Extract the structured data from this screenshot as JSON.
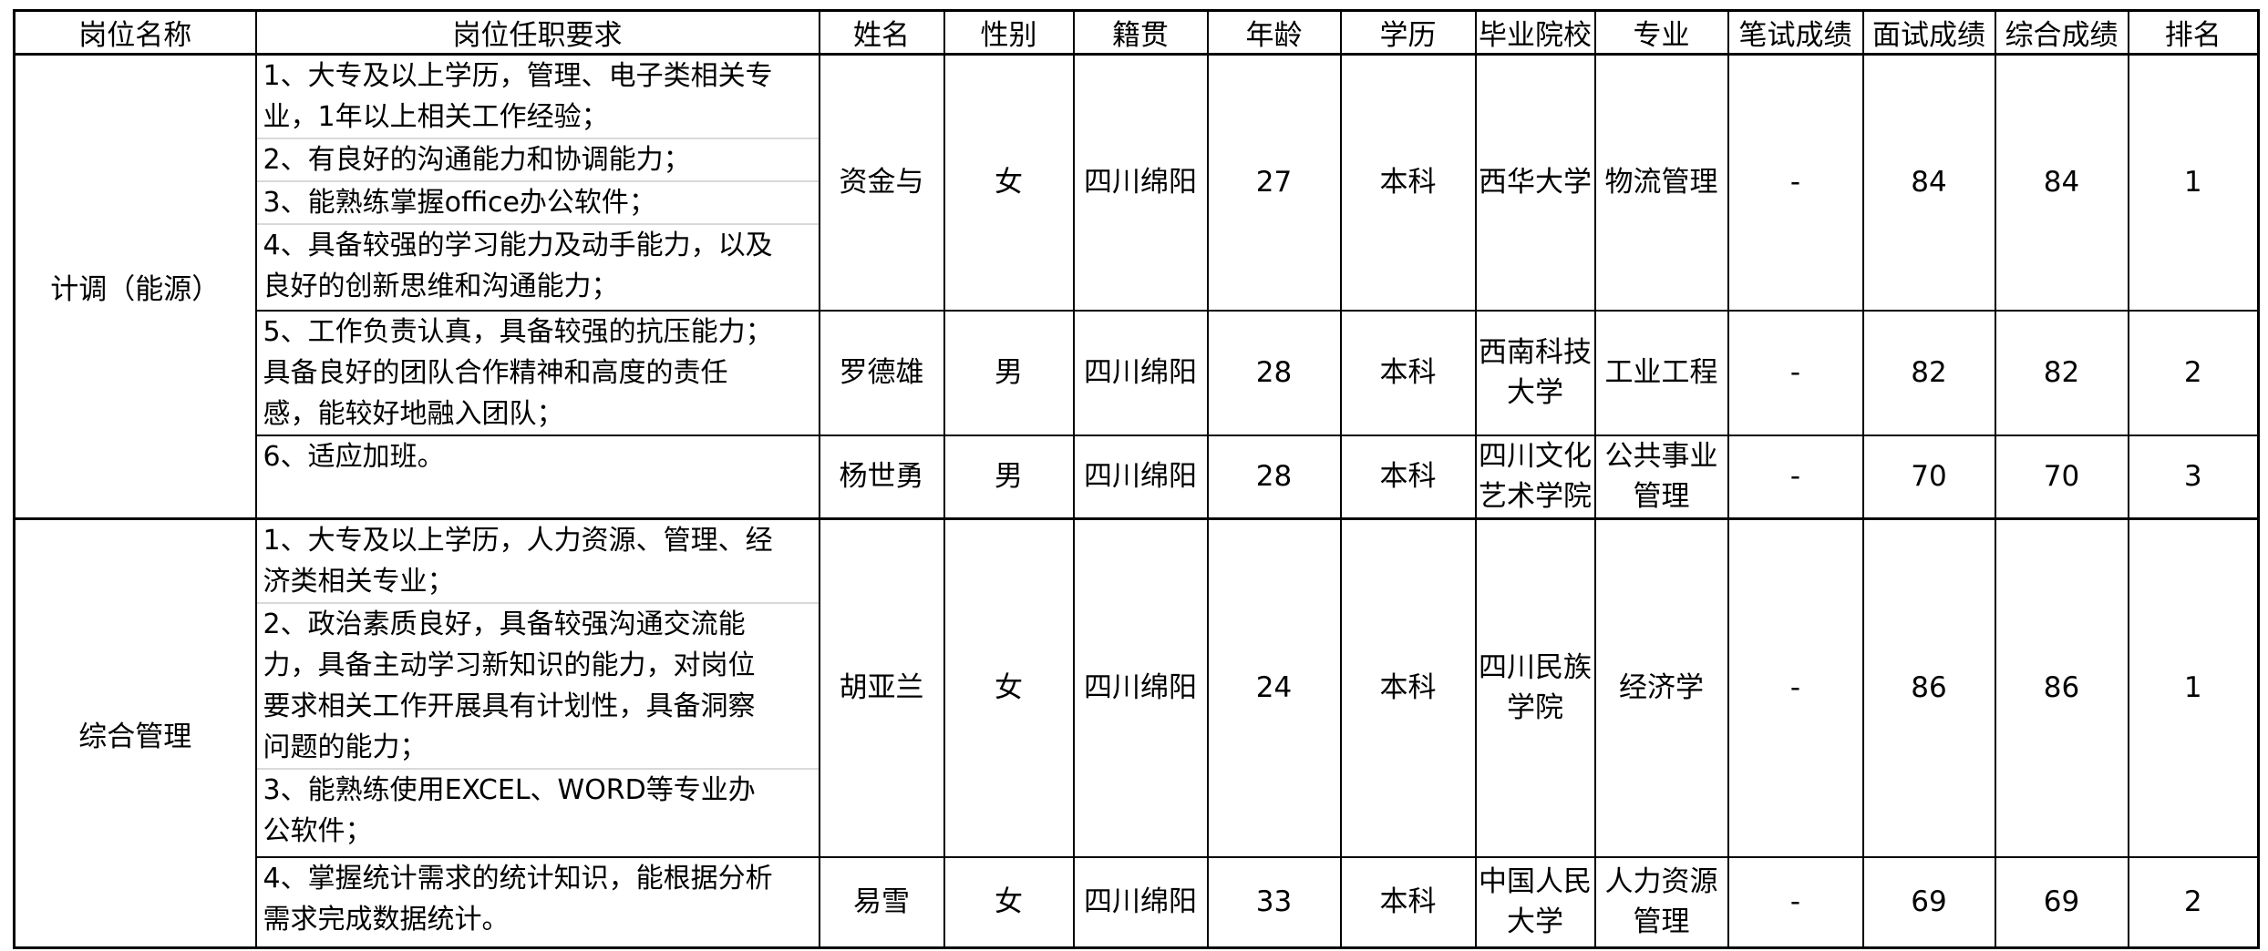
{
  "table": {
    "headers": [
      "岗位名称",
      "岗位任职要求",
      "姓名",
      "性别",
      "籍贯",
      "年龄",
      "学历",
      "毕业院校",
      "专业",
      "笔试成绩",
      "面试成绩",
      "综合成绩",
      "排名"
    ],
    "divider_color": "#d9d9d9",
    "grid_color": "#000000",
    "groups": [
      {
        "position": "计调（能源）",
        "rows": [
          {
            "requirements": [
              "1、大专及以上学历，管理、电子类相关专\n业，1年以上相关工作经验；",
              "2、有良好的沟通能力和协调能力；",
              "3、能熟练掌握office办公软件；",
              "4、具备较强的学习能力及动手能力，以及\n良好的创新思维和沟通能力；"
            ],
            "cells": [
              "资金与",
              "女",
              "四川绵阳",
              "27",
              "本科",
              "西华大学",
              "物流管理",
              "-",
              "84",
              "84",
              "1"
            ]
          },
          {
            "requirements": [
              "5、工作负责认真，具备较强的抗压能力；\n具备良好的团队合作精神和高度的责任\n感，能较好地融入团队；"
            ],
            "cells": [
              "罗德雄",
              "男",
              "四川绵阳",
              "28",
              "本科",
              "西南科技\n大学",
              "工业工程",
              "-",
              "82",
              "82",
              "2"
            ]
          },
          {
            "requirements": [
              "6、适应加班。"
            ],
            "cells": [
              "杨世勇",
              "男",
              "四川绵阳",
              "28",
              "本科",
              "四川文化\n艺术学院",
              "公共事业\n管理",
              "-",
              "70",
              "70",
              "3"
            ]
          }
        ]
      },
      {
        "position": "综合管理",
        "rows": [
          {
            "requirements": [
              "1、大专及以上学历，人力资源、管理、经\n济类相关专业；",
              "2、政治素质良好，具备较强沟通交流能\n力，具备主动学习新知识的能力，对岗位\n要求相关工作开展具有计划性，具备洞察\n问题的能力；",
              "3、能熟练使用EXCEL、WORD等专业办\n公软件；"
            ],
            "cells": [
              "胡亚兰",
              "女",
              "四川绵阳",
              "24",
              "本科",
              "四川民族\n学院",
              "经济学",
              "-",
              "86",
              "86",
              "1"
            ]
          },
          {
            "requirements": [
              "4、掌握统计需求的统计知识，能根据分析\n需求完成数据统计。"
            ],
            "cells": [
              "易雪",
              "女",
              "四川绵阳",
              "33",
              "本科",
              "中国人民\n大学",
              "人力资源\n管理",
              "-",
              "69",
              "69",
              "2"
            ]
          }
        ]
      }
    ]
  }
}
